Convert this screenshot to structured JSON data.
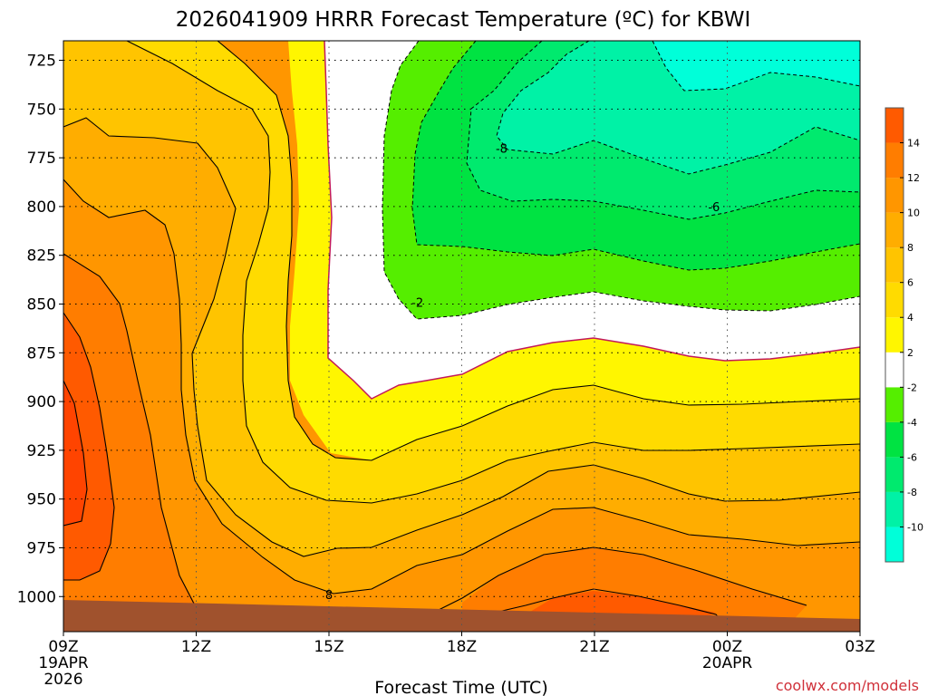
{
  "title": "2026041909 HRRR Forecast Temperature (ºC) for KBWI",
  "credit": "coolwx.com/models",
  "chart_data": {
    "type": "contour",
    "title": "2026041909 HRRR Forecast Temperature (ºC) for KBWI",
    "xlabel": "Forecast Time (UTC)",
    "ylabel": "",
    "x_ticks": [
      {
        "label": "09Z",
        "hour": 0,
        "date": "19APR",
        "year": "2026"
      },
      {
        "label": "12Z",
        "hour": 3
      },
      {
        "label": "15Z",
        "hour": 6
      },
      {
        "label": "18Z",
        "hour": 9
      },
      {
        "label": "21Z",
        "hour": 12
      },
      {
        "label": "00Z",
        "hour": 15,
        "date": "20APR"
      },
      {
        "label": "03Z",
        "hour": 18
      }
    ],
    "xlim": [
      0,
      18
    ],
    "y_ticks": [
      "725",
      "750",
      "775",
      "800",
      "825",
      "850",
      "875",
      "900",
      "925",
      "950",
      "975",
      "1000"
    ],
    "y_tick_values": [
      725,
      750,
      775,
      800,
      825,
      850,
      875,
      900,
      925,
      950,
      975,
      1000
    ],
    "ylim": [
      715,
      1018
    ],
    "grid": true,
    "colorbar": {
      "levels": [
        -12,
        -10,
        -8,
        -6,
        -4,
        -2,
        2,
        4,
        6,
        8,
        10,
        12,
        14,
        16
      ],
      "labels": [
        "-10",
        "-8",
        "-6",
        "-4",
        "-2",
        "2",
        "4",
        "6",
        "8",
        "10",
        "12",
        "14"
      ],
      "colors": [
        "#00ffd9",
        "#00f2a6",
        "#00ea6e",
        "#00e342",
        "#55ee00",
        "#ffffff",
        "#fff600",
        "#ffdb00",
        "#ffc400",
        "#ffad00",
        "#ff9600",
        "#ff7d00",
        "#ff5a00"
      ]
    },
    "contour_labels": [
      {
        "text": "-8",
        "hour": 9.9,
        "hpa": 770
      },
      {
        "text": "-6",
        "hour": 14.7,
        "hpa": 800
      },
      {
        "text": "-2",
        "hour": 8.0,
        "hpa": 849
      },
      {
        "text": "8",
        "hour": 6.0,
        "hpa": 999
      }
    ],
    "surface_color": "#a0522d",
    "surface_pressure_start": 1002,
    "surface_pressure_end": 1011
  }
}
